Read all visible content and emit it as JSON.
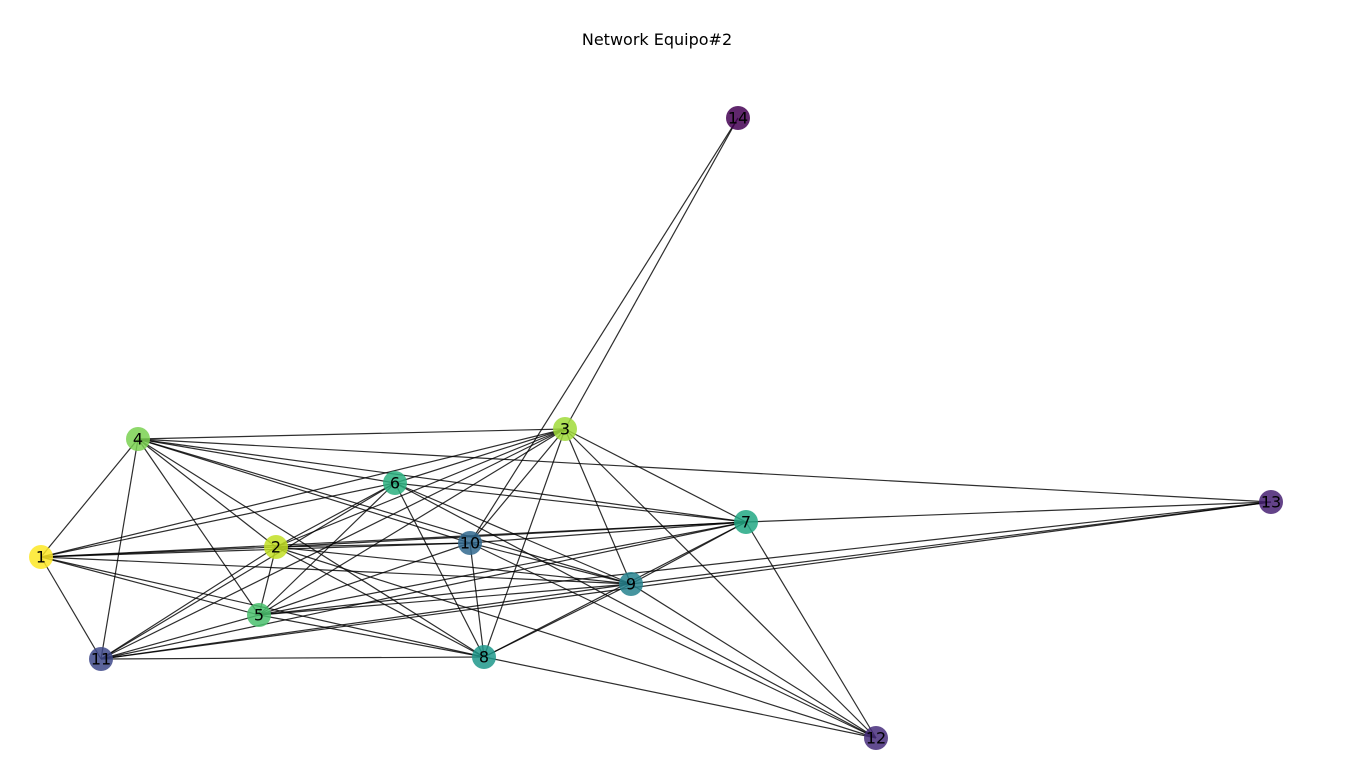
{
  "figure": {
    "title": "Network Equipo#2"
  },
  "graph": {
    "nodes": [
      {
        "id": "1",
        "label": "1",
        "color": "#fde725"
      },
      {
        "id": "2",
        "label": "2",
        "color": "#c2df23"
      },
      {
        "id": "3",
        "label": "3",
        "color": "#a0da39"
      },
      {
        "id": "4",
        "label": "4",
        "color": "#7ad151"
      },
      {
        "id": "5",
        "label": "5",
        "color": "#4ac16d"
      },
      {
        "id": "6",
        "label": "6",
        "color": "#2ab07f"
      },
      {
        "id": "7",
        "label": "7",
        "color": "#22a884"
      },
      {
        "id": "8",
        "label": "8",
        "color": "#1f988b"
      },
      {
        "id": "9",
        "label": "9",
        "color": "#26828e"
      },
      {
        "id": "10",
        "label": "10",
        "color": "#31688e"
      },
      {
        "id": "11",
        "label": "11",
        "color": "#3e4989"
      },
      {
        "id": "12",
        "label": "12",
        "color": "#472d7b"
      },
      {
        "id": "13",
        "label": "13",
        "color": "#482173"
      },
      {
        "id": "14",
        "label": "14",
        "color": "#440154"
      }
    ],
    "edges": [
      [
        "1",
        "2"
      ],
      [
        "1",
        "4"
      ],
      [
        "1",
        "3"
      ],
      [
        "1",
        "6"
      ],
      [
        "1",
        "5"
      ],
      [
        "1",
        "8"
      ],
      [
        "1",
        "9"
      ],
      [
        "1",
        "10"
      ],
      [
        "1",
        "11"
      ],
      [
        "1",
        "7"
      ],
      [
        "2",
        "4"
      ],
      [
        "2",
        "3"
      ],
      [
        "2",
        "6"
      ],
      [
        "2",
        "5"
      ],
      [
        "2",
        "8"
      ],
      [
        "2",
        "9"
      ],
      [
        "2",
        "10"
      ],
      [
        "2",
        "11"
      ],
      [
        "2",
        "7"
      ],
      [
        "2",
        "12"
      ],
      [
        "3",
        "4"
      ],
      [
        "3",
        "5"
      ],
      [
        "3",
        "6"
      ],
      [
        "3",
        "7"
      ],
      [
        "3",
        "8"
      ],
      [
        "3",
        "9"
      ],
      [
        "3",
        "10"
      ],
      [
        "3",
        "11"
      ],
      [
        "3",
        "12"
      ],
      [
        "3",
        "14"
      ],
      [
        "4",
        "5"
      ],
      [
        "4",
        "6"
      ],
      [
        "4",
        "7"
      ],
      [
        "4",
        "8"
      ],
      [
        "4",
        "9"
      ],
      [
        "4",
        "10"
      ],
      [
        "4",
        "11"
      ],
      [
        "4",
        "13"
      ],
      [
        "5",
        "6"
      ],
      [
        "5",
        "7"
      ],
      [
        "5",
        "8"
      ],
      [
        "5",
        "9"
      ],
      [
        "5",
        "10"
      ],
      [
        "5",
        "11"
      ],
      [
        "5",
        "13"
      ],
      [
        "6",
        "7"
      ],
      [
        "6",
        "8"
      ],
      [
        "6",
        "9"
      ],
      [
        "6",
        "11"
      ],
      [
        "6",
        "12"
      ],
      [
        "7",
        "8"
      ],
      [
        "7",
        "9"
      ],
      [
        "7",
        "10"
      ],
      [
        "7",
        "11"
      ],
      [
        "7",
        "12"
      ],
      [
        "7",
        "13"
      ],
      [
        "8",
        "9"
      ],
      [
        "8",
        "10"
      ],
      [
        "8",
        "11"
      ],
      [
        "8",
        "12"
      ],
      [
        "9",
        "10"
      ],
      [
        "9",
        "11"
      ],
      [
        "9",
        "12"
      ],
      [
        "9",
        "13"
      ],
      [
        "10",
        "12"
      ],
      [
        "10",
        "14"
      ],
      [
        "11",
        "13"
      ]
    ]
  }
}
